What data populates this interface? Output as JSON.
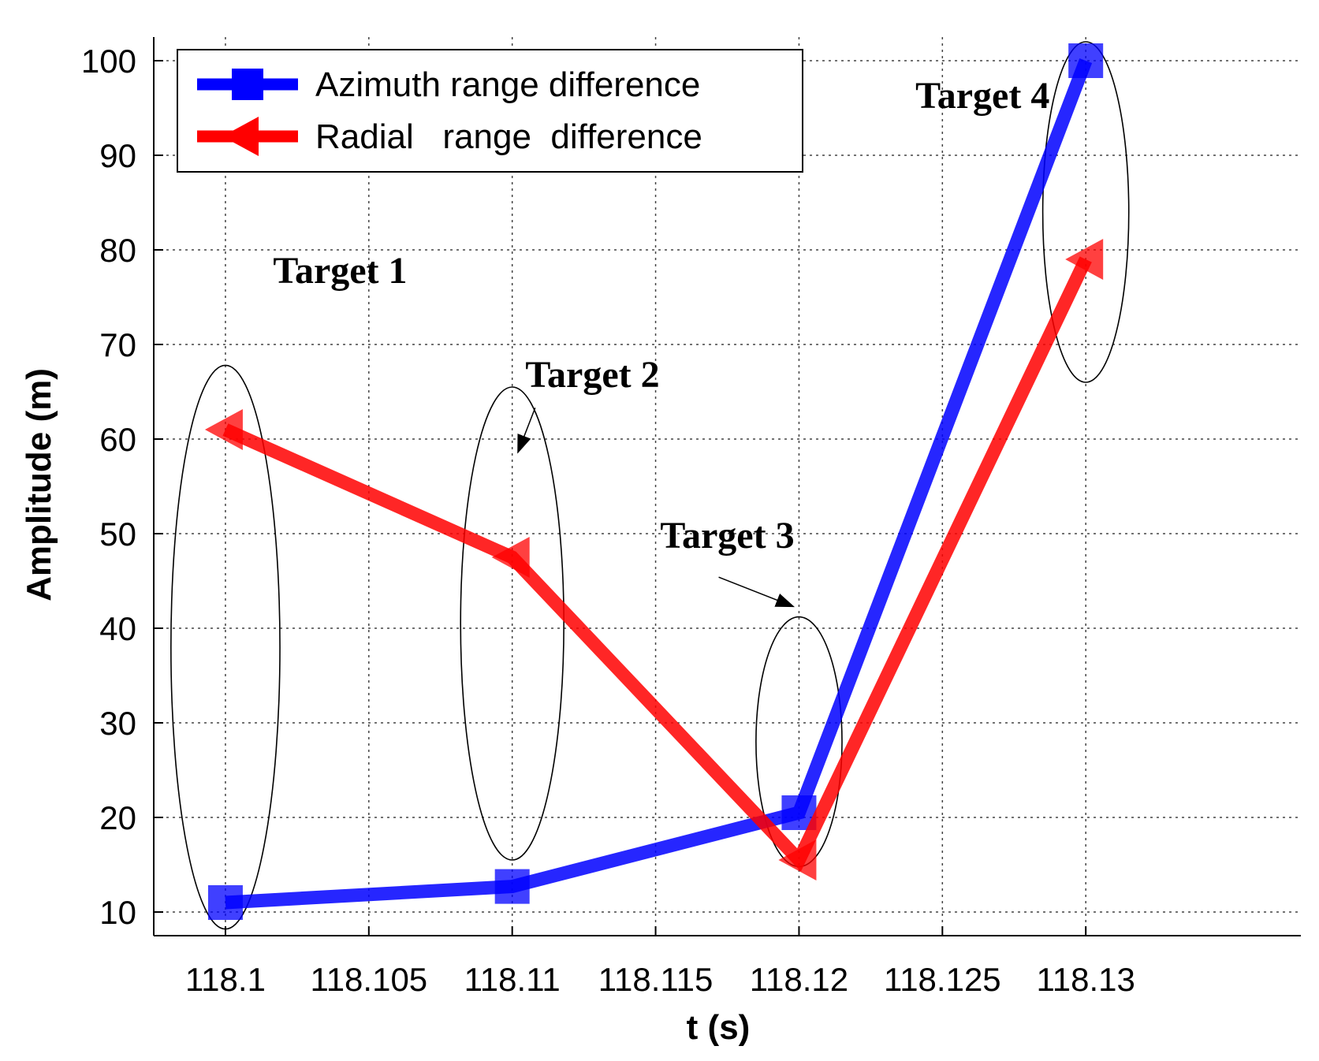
{
  "chart_data": {
    "type": "line",
    "xlabel": "t (s)",
    "ylabel": "Amplitude (m)",
    "xlim": [
      118.0975,
      118.1375
    ],
    "ylim": [
      7.5,
      102.5
    ],
    "x_ticks": [
      "118.1",
      "118.105",
      "118.11",
      "118.115",
      "118.12",
      "118.125",
      "118.13"
    ],
    "y_ticks": [
      "10",
      "20",
      "30",
      "40",
      "50",
      "60",
      "70",
      "80",
      "90",
      "100"
    ],
    "grid": true,
    "legend_position": "top-left",
    "x": [
      118.1,
      118.11,
      118.12,
      118.13
    ],
    "series": [
      {
        "name": "Azimuth range difference",
        "values": [
          11,
          12.7,
          20.5,
          100
        ],
        "color": "#0000ff",
        "marker": "square"
      },
      {
        "name": "Radial   range  difference",
        "values": [
          61,
          47.5,
          15.5,
          79
        ],
        "color": "#ff0000",
        "marker": "triangle-left"
      }
    ],
    "annotations": [
      {
        "text": "Target 1",
        "x": 118.104,
        "y": 76.5
      },
      {
        "text": "Target 2",
        "x": 118.1128,
        "y": 65.5
      },
      {
        "text": "Target 3",
        "x": 118.1175,
        "y": 48.5
      },
      {
        "text": "Target 4",
        "x": 118.1264,
        "y": 95
      }
    ],
    "target_groups": [
      {
        "x": 118.1,
        "y_center": 38,
        "x_halfwidth": 0.0019,
        "y_halfheight": 29.8
      },
      {
        "x": 118.11,
        "y_center": 40.5,
        "x_halfwidth": 0.0018,
        "y_halfheight": 25
      },
      {
        "x": 118.12,
        "y_center": 28,
        "x_halfwidth": 0.0015,
        "y_halfheight": 13.2
      },
      {
        "x": 118.13,
        "y_center": 84,
        "x_halfwidth": 0.0015,
        "y_halfheight": 18
      }
    ],
    "arrows": [
      {
        "from": [
          118.1108,
          63.3
        ],
        "to": [
          118.1102,
          58.6
        ]
      },
      {
        "from": [
          118.1172,
          45.4
        ],
        "to": [
          118.1198,
          42.3
        ]
      }
    ]
  }
}
